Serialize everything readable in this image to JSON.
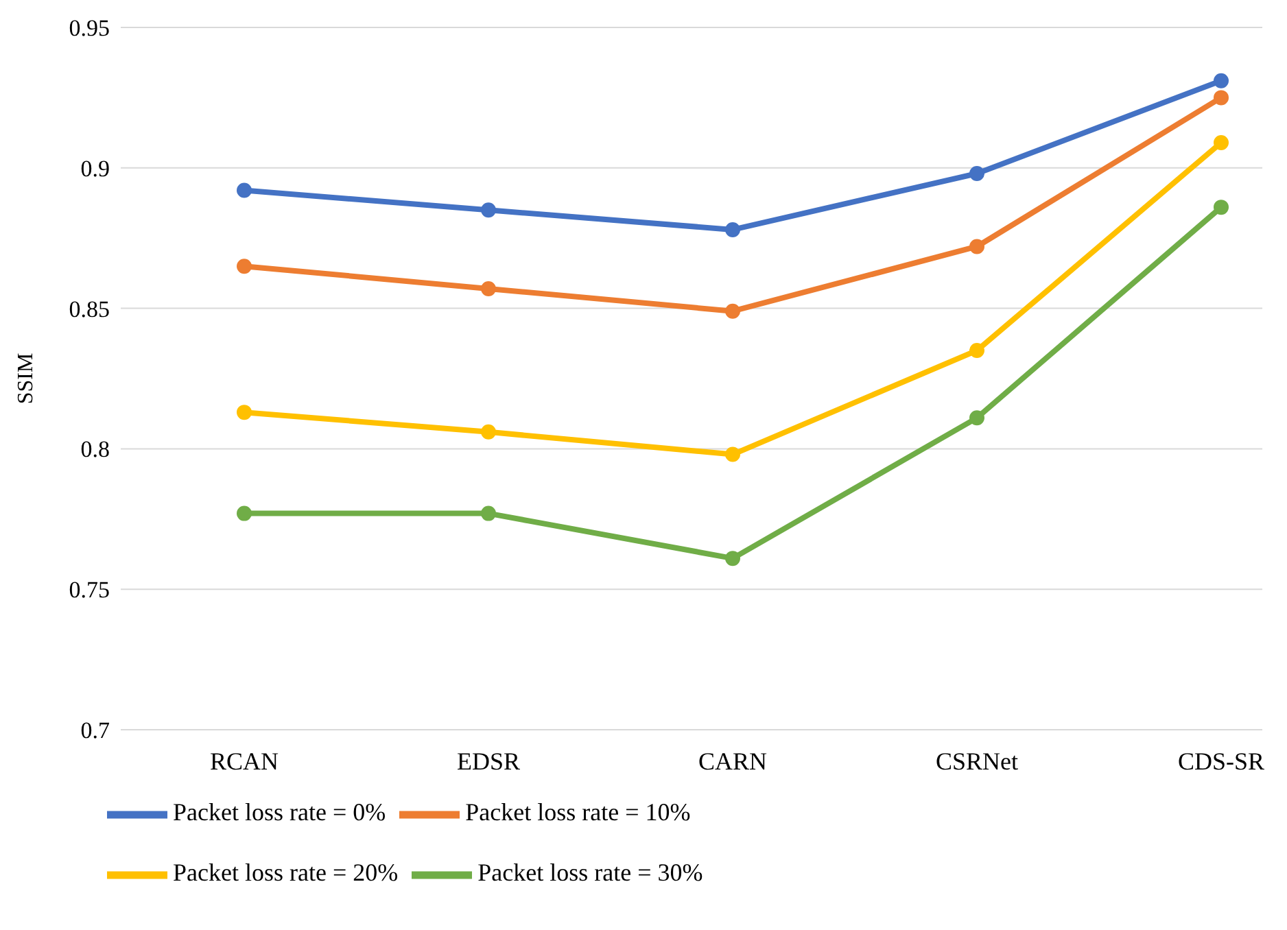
{
  "chart_data": {
    "type": "line",
    "ylabel": "SSIM",
    "categories": [
      "RCAN",
      "EDSR",
      "CARN",
      "CSRNet",
      "CDS-SR"
    ],
    "series": [
      {
        "name": "Packet loss rate = 0%",
        "color": "#4472c4",
        "values": [
          0.892,
          0.885,
          0.878,
          0.898,
          0.931
        ]
      },
      {
        "name": "Packet loss rate = 10%",
        "color": "#ed7d31",
        "values": [
          0.865,
          0.857,
          0.849,
          0.872,
          0.925
        ]
      },
      {
        "name": "Packet loss rate = 20%",
        "color": "#ffc000",
        "values": [
          0.813,
          0.806,
          0.798,
          0.835,
          0.909
        ]
      },
      {
        "name": "Packet loss rate = 30%",
        "color": "#70ad47",
        "values": [
          0.777,
          0.777,
          0.761,
          0.811,
          0.886
        ]
      }
    ],
    "ylim": [
      0.7,
      0.95
    ],
    "yticks": [
      0.7,
      0.75,
      0.8,
      0.85,
      0.9,
      0.95
    ],
    "grid": "y",
    "legend": "bottom",
    "marker": "circle",
    "line_style": "solid"
  }
}
